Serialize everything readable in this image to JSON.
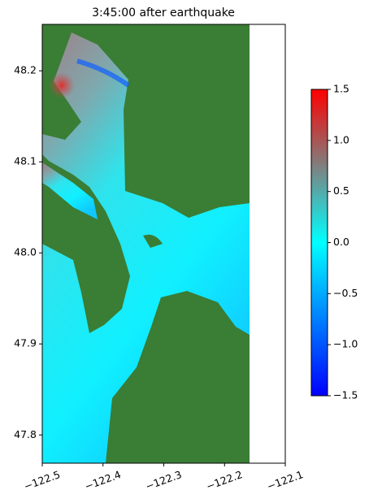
{
  "chart_data": {
    "type": "heatmap",
    "title": "3:45:00 after earthquake",
    "xlim": [
      -122.5,
      -122.1
    ],
    "ylim": [
      47.769,
      48.251
    ],
    "xticks": [
      {
        "value": -122.5,
        "label": "−122.5"
      },
      {
        "value": -122.4,
        "label": "−122.4"
      },
      {
        "value": -122.3,
        "label": "−122.3"
      },
      {
        "value": -122.2,
        "label": "−122.2"
      },
      {
        "value": -122.1,
        "label": "−122.1"
      }
    ],
    "yticks": [
      48.2,
      48.1,
      {
        "value": 48.0,
        "label": "48.0"
      },
      47.9,
      47.8
    ],
    "colorbar": {
      "lim": [
        -1.5,
        1.5
      ],
      "ticks": [
        1.5,
        {
          "value": 1.0,
          "label": "1.0"
        },
        0.5,
        {
          "value": 0.0,
          "label": "0.0"
        },
        {
          "value": -0.5,
          "label": "−0.5"
        },
        {
          "value": -1.0,
          "label": "−1.0"
        },
        {
          "value": -1.5,
          "label": "−1.5"
        }
      ],
      "colors": [
        "#0000ff",
        "#00ffff",
        "#ff0000"
      ]
    },
    "land_color": "#3a7d35"
  }
}
